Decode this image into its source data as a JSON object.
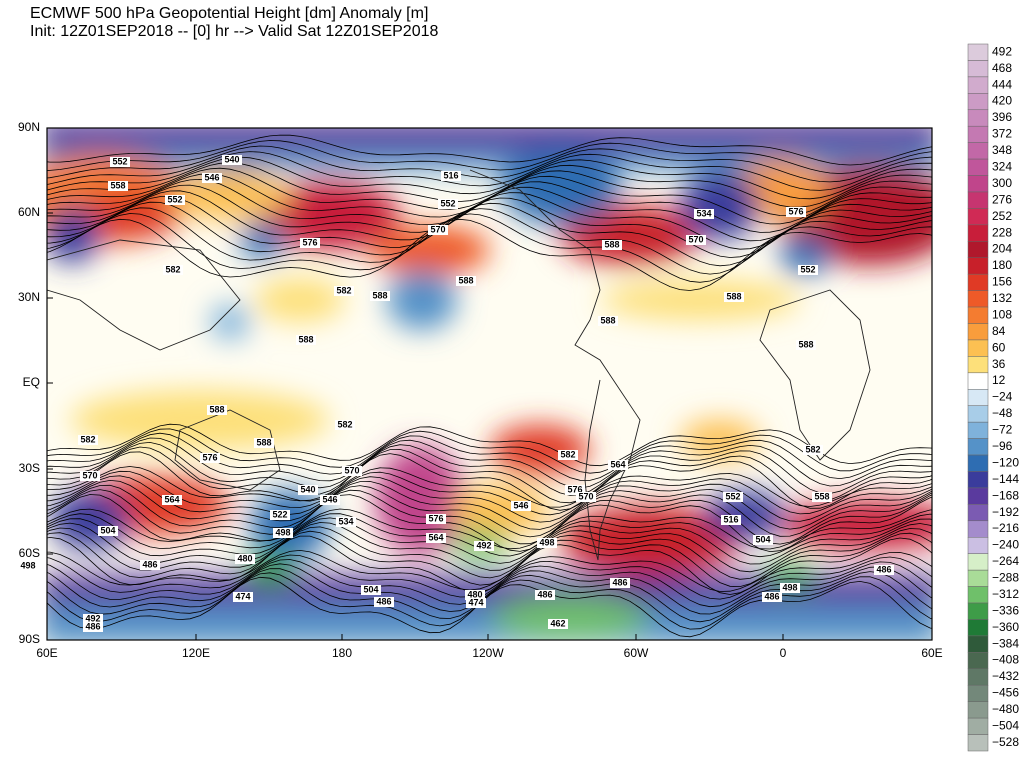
{
  "header": {
    "title": "ECMWF 500 hPa Geopotential Height [dm] Anomaly [m]",
    "subtitle": "Init: 12Z01SEP2018 -- [0] hr --> Valid Sat 12Z01SEP2018"
  },
  "map": {
    "lat_labels": [
      "90N",
      "60N",
      "30N",
      "EQ",
      "30S",
      "60S",
      "90S"
    ],
    "lon_labels": [
      "60E",
      "120E",
      "180",
      "120W",
      "60W",
      "0",
      "60E"
    ],
    "contour_labels": [
      "552",
      "558",
      "552",
      "540",
      "546",
      "516",
      "552",
      "570",
      "576",
      "582",
      "582",
      "588",
      "588",
      "588",
      "588",
      "588",
      "588",
      "588",
      "570",
      "534",
      "576",
      "552",
      "582",
      "570",
      "576",
      "588",
      "582",
      "570",
      "564",
      "504",
      "522",
      "498",
      "480",
      "540",
      "546",
      "534",
      "576",
      "564",
      "582",
      "576",
      "570",
      "564",
      "546",
      "498",
      "492",
      "582",
      "558",
      "504",
      "498",
      "486",
      "486",
      "474",
      "504",
      "486",
      "480",
      "474",
      "486",
      "462",
      "492",
      "486",
      "498",
      "588",
      "486",
      "486",
      "516",
      "552"
    ]
  },
  "colorbar": {
    "labels": [
      "492",
      "468",
      "444",
      "420",
      "396",
      "372",
      "348",
      "324",
      "300",
      "276",
      "252",
      "228",
      "204",
      "180",
      "156",
      "132",
      "108",
      "84",
      "60",
      "36",
      "12",
      "−24",
      "−48",
      "−72",
      "−96",
      "−120",
      "−144",
      "−168",
      "−192",
      "−216",
      "−240",
      "−264",
      "−288",
      "−312",
      "−336",
      "−360",
      "−384",
      "−408",
      "−432",
      "−456",
      "−480",
      "−504",
      "−528"
    ],
    "colors": [
      "#dccbdc",
      "#d6bbd6",
      "#d1abcd",
      "#cc9bc5",
      "#c88abc",
      "#c479b2",
      "#c268a7",
      "#c0569b",
      "#c0458b",
      "#c63570",
      "#d02a55",
      "#c81e3a",
      "#b0182c",
      "#c8202a",
      "#e03a25",
      "#ee5a28",
      "#f47c30",
      "#f99d3c",
      "#fcc052",
      "#fde07a",
      "#ffffff",
      "#d7e8f5",
      "#a8cde8",
      "#7fb2db",
      "#5592c8",
      "#2e6db2",
      "#3a3c9c",
      "#5a3a9e",
      "#7b5bb2",
      "#a48ccc",
      "#cbbfe3",
      "#d6efc8",
      "#a9dc98",
      "#6fc06a",
      "#3e9c48",
      "#1f7a36",
      "#2f5a3a",
      "#4a6850",
      "#5f7866",
      "#73887a",
      "#8a9a8e",
      "#a0ada3",
      "#b8c0ba"
    ]
  }
}
